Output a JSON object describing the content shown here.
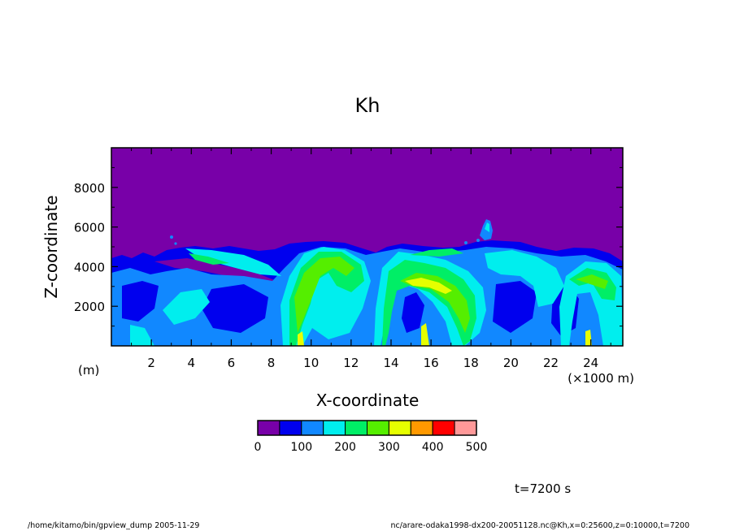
{
  "chart_data": {
    "type": "heatmap",
    "title": "Kh",
    "xlabel": "X-coordinate",
    "ylabel": "Z-coordinate",
    "x_unit": "(m)",
    "x_scale_label": "(×1000 m)",
    "xlim": [
      0,
      25.6
    ],
    "ylim": [
      0,
      10000
    ],
    "x_ticks": [
      "2",
      "4",
      "6",
      "8",
      "10",
      "12",
      "14",
      "16",
      "18",
      "20",
      "22",
      "24"
    ],
    "x_tick_values": [
      2,
      4,
      6,
      8,
      10,
      12,
      14,
      16,
      18,
      20,
      22,
      24
    ],
    "y_ticks": [
      "2000",
      "4000",
      "6000",
      "8000"
    ],
    "y_tick_values": [
      2000,
      4000,
      6000,
      8000
    ],
    "colorbar": {
      "labels": [
        "0",
        "100",
        "200",
        "300",
        "400",
        "500"
      ],
      "label_values": [
        0,
        100,
        200,
        300,
        400,
        500
      ],
      "levels": [
        0,
        50,
        100,
        150,
        200,
        250,
        300,
        350,
        400,
        450,
        500
      ],
      "colors": [
        "#7800a8",
        "#0000ee",
        "#1188ff",
        "#00eeee",
        "#00ee66",
        "#55ee00",
        "#e6ff00",
        "#ff9900",
        "#ff0000",
        "#ff9999"
      ]
    },
    "field_summary": "Kh is about 0 above 5000 m; turbulent eddies mostly 50-300 below about 5000 m, with peaks above 300 near x≈15.5-16.5 and near the surface around x≈9, 15.5 and 23.5"
  },
  "time_label": "t=7200 s",
  "footer_left": "/home/kitamo/bin/gpview_dump  2005-11-29",
  "footer_right": "nc/arare-odaka1998-dx200-20051128.nc@Kh,x=0:25600,z=0:10000,t=7200"
}
